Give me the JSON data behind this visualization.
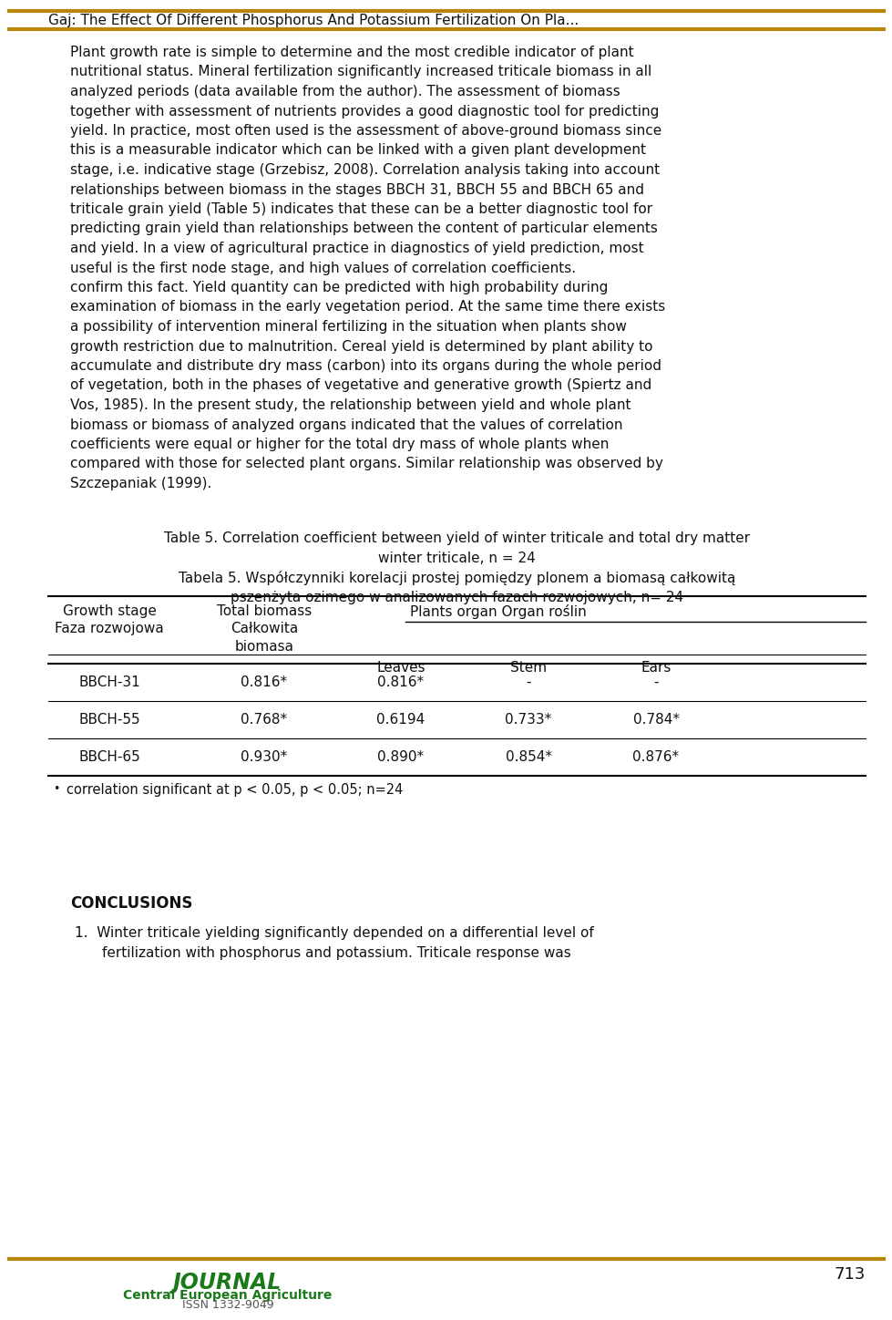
{
  "header_text": "Gaj: The Effect Of Different Phosphorus And Potassium Fertilization On Pla...",
  "header_line_color": "#B8860B",
  "body_lines": [
    "Plant growth rate is simple to determine and the most credible indicator of plant",
    "nutritional status. Mineral fertilization significantly increased triticale biomass in all",
    "analyzed periods (data available from the author). The assessment of biomass",
    "together with assessment of nutrients provides a good diagnostic tool for predicting",
    "yield. In practice, most often used is the assessment of above-ground biomass since",
    "this is a measurable indicator which can be linked with a given plant development",
    "stage, i.e. indicative stage (Grzebisz, 2008). Correlation analysis taking into account",
    "relationships between biomass in the stages BBCH 31, BBCH 55 and BBCH 65 and",
    "triticale grain yield (Table 5) indicates that these can be a better diagnostic tool for",
    "predicting grain yield than relationships between the content of particular elements",
    "and yield. In a view of agricultural practice in diagnostics of yield prediction, most",
    "useful is the first node stage, and high values of correlation coefficients.",
    "confirm this fact. Yield quantity can be predicted with high probability during",
    "examination of biomass in the early vegetation period. At the same time there exists",
    "a possibility of intervention mineral fertilizing in the situation when plants show",
    "growth restriction due to malnutrition. Cereal yield is determined by plant ability to",
    "accumulate and distribute dry mass (carbon) into its organs during the whole period",
    "of vegetation, both in the phases of vegetative and generative growth (Spiertz and",
    "Vos, 1985). In the present study, the relationship between yield and whole plant",
    "biomass or biomass of analyzed organs indicated that the values of correlation",
    "coefficients were equal or higher for the total dry mass of whole plants when",
    "compared with those for selected plant organs. Similar relationship was observed by",
    "Szczepaniak (1999)."
  ],
  "table_title_1": "Table 5. Correlation coefficient between yield of winter triticale and total dry matter",
  "table_title_2": "winter triticale, n = 24",
  "table_title_3": "Tabela 5. Współczynniki korelacji prostej pomiędzy plonem a biomasą całkowitą",
  "table_title_4": "pszenżyta ozimego w analizowanych fazach rozwojowych, n= 24",
  "col_header_stage": "Growth stage\nFaza rozwojowa",
  "col_header_total": "Total biomass\nCałkowita\nbiomasa",
  "col_header_organ": "Plants organ Organ roślin",
  "col_sub_leaves": "Leaves",
  "col_sub_stem": "Stem",
  "col_sub_ears": "Ears",
  "rows": [
    {
      "stage": "BBCH-31",
      "total": "0.816*",
      "leaves": "0.816*",
      "stem": "-",
      "ears": "-"
    },
    {
      "stage": "BBCH-55",
      "total": "0.768*",
      "leaves": "0.6194",
      "stem": "0.733*",
      "ears": "0.784*"
    },
    {
      "stage": "BBCH-65",
      "total": "0.930*",
      "leaves": "0.890*",
      "stem": "0.854*",
      "ears": "0.876*"
    }
  ],
  "footnote_bullet": "•",
  "footnote_text": "  correlation significant at p < 0.05, p < 0.05; n=24",
  "conclusions_header": "CONCLUSIONS",
  "conclusions_line1": "1.  Winter triticale yielding significantly depended on a differential level of",
  "conclusions_line2": "fertilization with phosphorus and potassium. Triticale response was",
  "journal_name": "JOURNAL",
  "journal_sub": "Central European Agriculture",
  "journal_issn": "ISSN 1332-9049",
  "page_number": "713",
  "journal_color": "#1a7a1a",
  "text_color": "#111111",
  "bg_color": "#ffffff"
}
